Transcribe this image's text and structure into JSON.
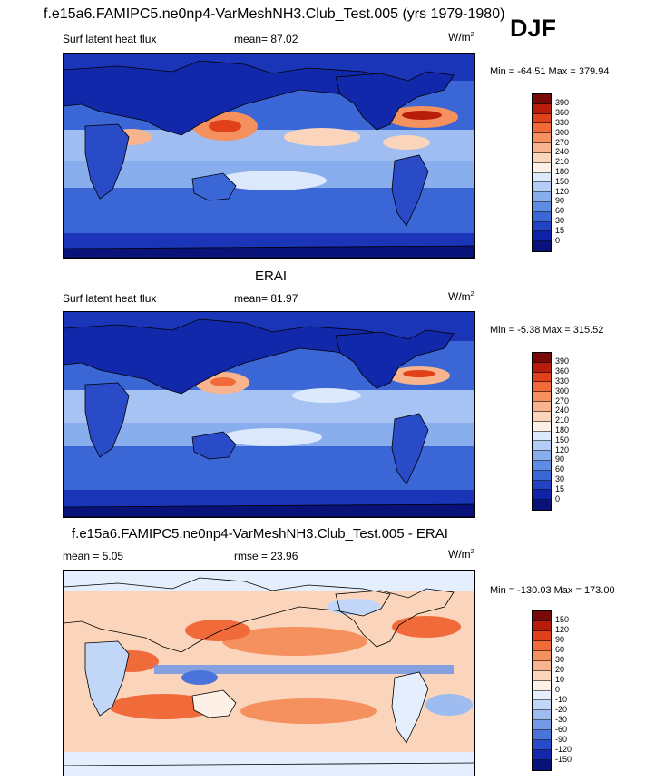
{
  "header": {
    "case_title": "f.e15a6.FAMIPC5.ne0np4-VarMeshNH3.Club_Test.005 (yrs 1979-1980)",
    "season": "DJF"
  },
  "panels": [
    {
      "title": "",
      "variable": "Surf latent heat flux",
      "stat1_label": "mean=",
      "stat1_value": "87.02",
      "stat2_label": "",
      "stat2_value": "",
      "units_base": "W/m",
      "units_exp": "2",
      "minmax": "Min = -64.51 Max = 379.94"
    },
    {
      "title": "ERAI",
      "variable": "Surf latent heat flux",
      "stat1_label": "mean=",
      "stat1_value": "81.97",
      "stat2_label": "",
      "stat2_value": "",
      "units_base": "W/m",
      "units_exp": "2",
      "minmax": "Min =  -5.38 Max = 315.52"
    },
    {
      "title": "f.e15a6.FAMIPC5.ne0np4-VarMeshNH3.Club_Test.005 - ERAI",
      "variable": "",
      "stat1_label": "mean =",
      "stat1_value": "5.05",
      "stat2_label": "rmse =",
      "stat2_value": "23.96",
      "units_base": "W/m",
      "units_exp": "2",
      "minmax": "Min = -130.03 Max = 173.00"
    }
  ],
  "colorbars": {
    "field": {
      "labels": [
        "390",
        "360",
        "330",
        "300",
        "270",
        "240",
        "210",
        "180",
        "150",
        "120",
        "90",
        "60",
        "30",
        "15",
        "0"
      ],
      "colors": [
        "#7a0a0a",
        "#b81c0a",
        "#e0401a",
        "#f06a3a",
        "#f5905f",
        "#f8b48f",
        "#fbd5bb",
        "#fdf0e6",
        "#dce8fb",
        "#b3cdf7",
        "#89aeee",
        "#5e8be3",
        "#3b66d6",
        "#2244c4",
        "#0e22a8",
        "#081278"
      ]
    },
    "diff": {
      "labels": [
        "150",
        "120",
        "90",
        "60",
        "30",
        "20",
        "10",
        "0",
        "-10",
        "-20",
        "-30",
        "-60",
        "-90",
        "-120",
        "-150"
      ],
      "colors": [
        "#7a0a0a",
        "#b81c0a",
        "#e0401a",
        "#f06a3a",
        "#f5905f",
        "#f8b48f",
        "#fbd5bb",
        "#fdf0e6",
        "#e4eefc",
        "#c2d7f8",
        "#9ebcf0",
        "#7298e6",
        "#4a74da",
        "#2a4bc8",
        "#1228aa",
        "#081278"
      ]
    }
  },
  "chart_data": [
    {
      "type": "heatmap",
      "title": "f.e15a6.FAMIPC5.ne0np4-VarMeshNH3.Club_Test.005 (yrs 1979-1980)",
      "subtitle": "Surf latent heat flux",
      "season": "DJF",
      "mean": 87.02,
      "min": -64.51,
      "max": 379.94,
      "units": "W/m2",
      "contour_levels": [
        0,
        15,
        30,
        60,
        90,
        120,
        150,
        180,
        210,
        240,
        270,
        300,
        330,
        360,
        390
      ]
    },
    {
      "type": "heatmap",
      "title": "ERAI",
      "subtitle": "Surf latent heat flux",
      "mean": 81.97,
      "min": -5.38,
      "max": 315.52,
      "units": "W/m2",
      "contour_levels": [
        0,
        15,
        30,
        60,
        90,
        120,
        150,
        180,
        210,
        240,
        270,
        300,
        330,
        360,
        390
      ]
    },
    {
      "type": "heatmap",
      "title": "f.e15a6.FAMIPC5.ne0np4-VarMeshNH3.Club_Test.005 - ERAI",
      "mean": 5.05,
      "rmse": 23.96,
      "min": -130.03,
      "max": 173.0,
      "units": "W/m2",
      "contour_levels": [
        -150,
        -120,
        -90,
        -60,
        -30,
        -20,
        -10,
        0,
        10,
        20,
        30,
        60,
        90,
        120,
        150
      ]
    }
  ]
}
